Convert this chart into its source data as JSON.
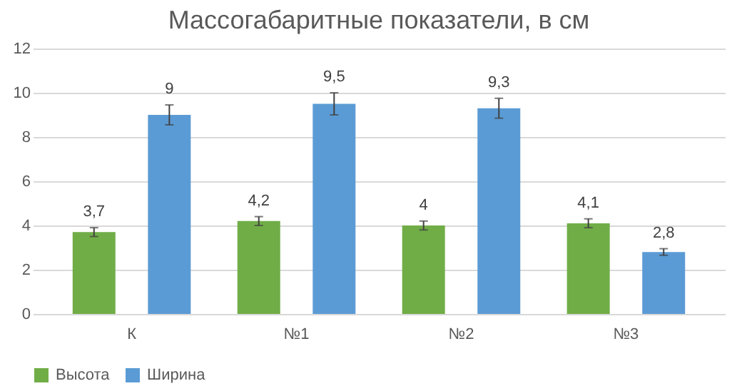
{
  "chart_data": {
    "type": "bar",
    "title": "Массогабаритные показатели, в см",
    "categories": [
      "К",
      "№1",
      "№2",
      "№3"
    ],
    "series": [
      {
        "name": "Высота",
        "color": "#70ad47",
        "values": [
          3.7,
          4.2,
          4.0,
          4.1
        ],
        "errors": [
          0.2,
          0.2,
          0.2,
          0.2
        ],
        "value_labels": [
          "3,7",
          "4,2",
          "4",
          "4,1"
        ]
      },
      {
        "name": "Ширина",
        "color": "#5b9bd5",
        "values": [
          9,
          9.5,
          9.3,
          2.8
        ],
        "errors": [
          0.45,
          0.5,
          0.45,
          0.15
        ],
        "value_labels": [
          "9",
          "9,5",
          "9,3",
          "2,8"
        ]
      }
    ],
    "ylim": [
      0,
      12
    ],
    "yticks": [
      0,
      2,
      4,
      6,
      8,
      10,
      12
    ],
    "grid": "y",
    "legend": "bottom"
  }
}
